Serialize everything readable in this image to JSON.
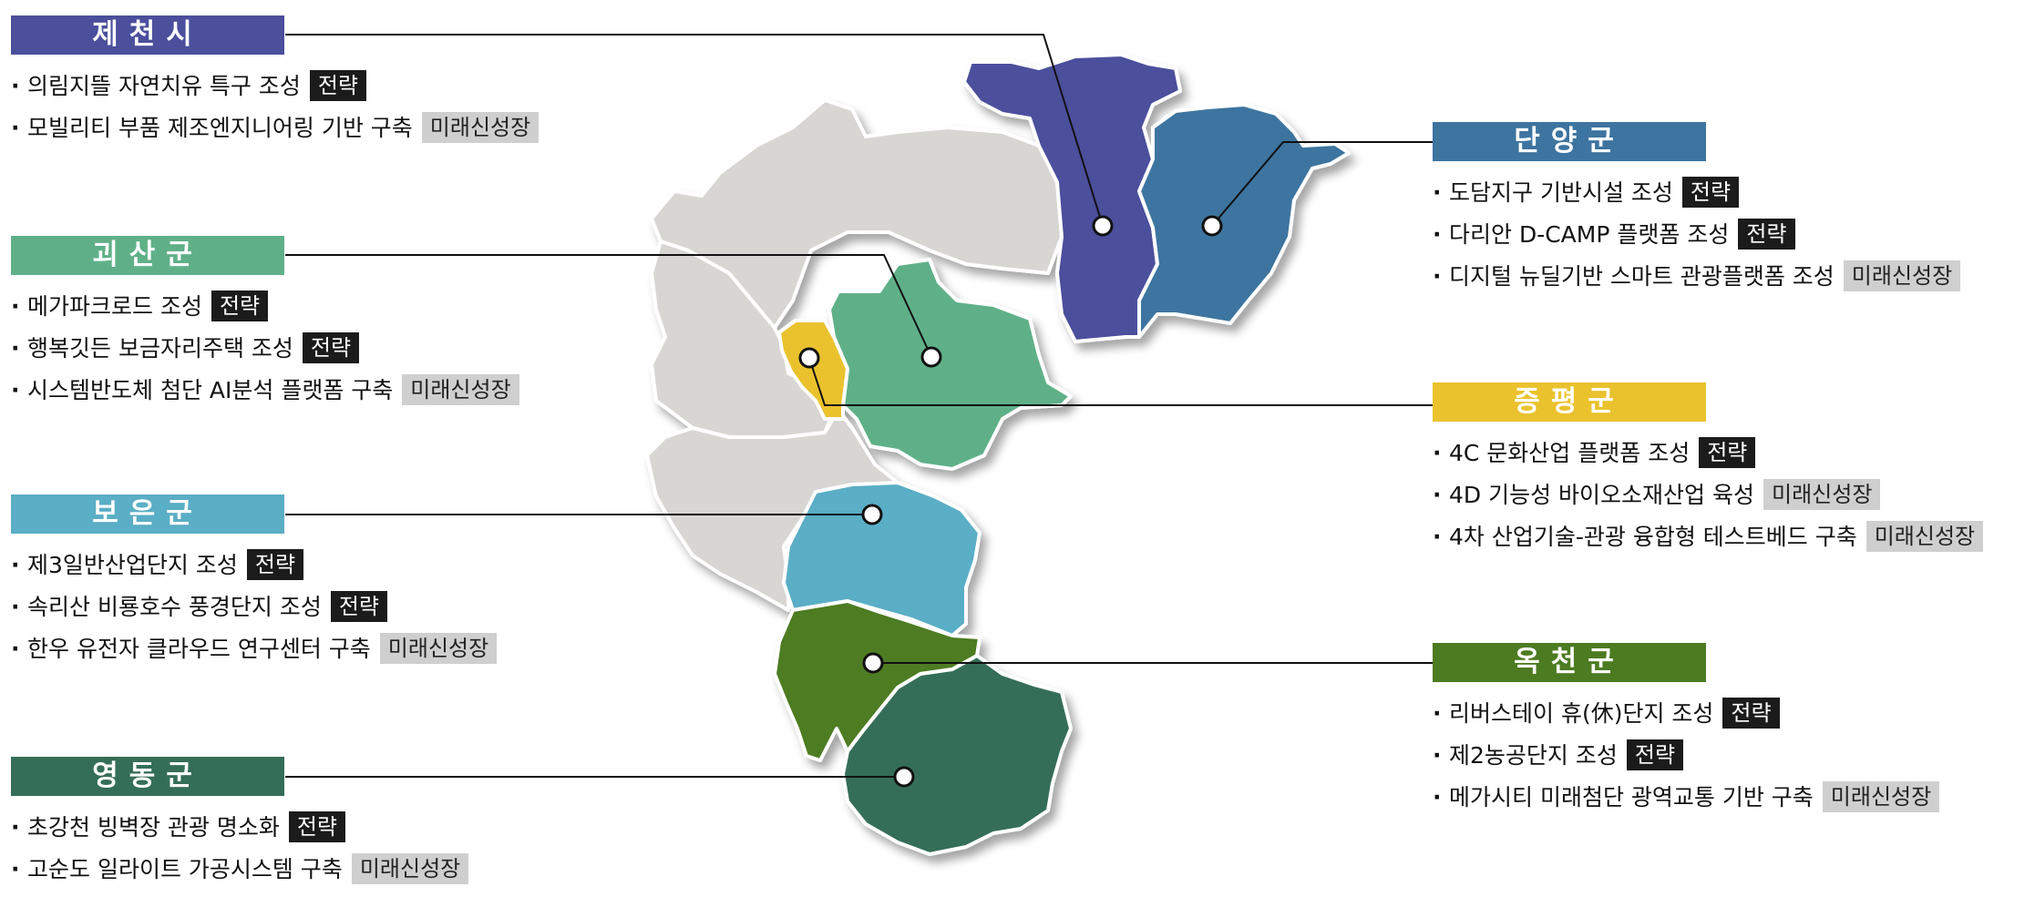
{
  "colors": {
    "jecheon": "#4b4f9c",
    "danyang": "#3d74a0",
    "goesan": "#5fb088",
    "jeungpyeong": "#eac22d",
    "boeun": "#5aaec5",
    "okcheon": "#4d7b21",
    "yeongdong": "#356e58",
    "other_region": "#d8d6d3",
    "leader_line": "#111111"
  },
  "regions": [
    {
      "id": "jecheon",
      "name": "제천시",
      "items": [
        {
          "text": "의림지뜰 자연치유 특구 조성",
          "tag": "전략",
          "tag_type": "strategy"
        },
        {
          "text": "모빌리티 부품 제조엔지니어링 기반 구축",
          "tag": "미래신성장",
          "tag_type": "future"
        }
      ]
    },
    {
      "id": "goesan",
      "name": "괴산군",
      "items": [
        {
          "text": "메가파크로드 조성",
          "tag": "전략",
          "tag_type": "strategy"
        },
        {
          "text": "행복깃든 보금자리주택 조성",
          "tag": "전략",
          "tag_type": "strategy"
        },
        {
          "text": "시스템반도체 첨단 AI분석 플랫폼 구축",
          "tag": "미래신성장",
          "tag_type": "future"
        }
      ]
    },
    {
      "id": "boeun",
      "name": "보은군",
      "items": [
        {
          "text": "제3일반산업단지 조성",
          "tag": "전략",
          "tag_type": "strategy"
        },
        {
          "text": "속리산 비룡호수 풍경단지 조성",
          "tag": "전략",
          "tag_type": "strategy"
        },
        {
          "text": "한우 유전자 클라우드 연구센터 구축",
          "tag": "미래신성장",
          "tag_type": "future"
        }
      ]
    },
    {
      "id": "yeongdong",
      "name": "영동군",
      "items": [
        {
          "text": "초강천 빙벽장 관광 명소화",
          "tag": "전략",
          "tag_type": "strategy"
        },
        {
          "text": "고순도 일라이트 가공시스템 구축",
          "tag": "미래신성장",
          "tag_type": "future"
        }
      ]
    },
    {
      "id": "danyang",
      "name": "단양군",
      "items": [
        {
          "text": "도담지구 기반시설 조성",
          "tag": "전략",
          "tag_type": "strategy"
        },
        {
          "text": "다리안 D-CAMP 플랫폼 조성",
          "tag": "전략",
          "tag_type": "strategy"
        },
        {
          "text": "디지털 뉴딜기반 스마트 관광플랫폼 조성",
          "tag": "미래신성장",
          "tag_type": "future"
        }
      ]
    },
    {
      "id": "jeungpyeong",
      "name": "증평군",
      "items": [
        {
          "text": "4C 문화산업 플랫폼 조성",
          "tag": "전략",
          "tag_type": "strategy"
        },
        {
          "text": "4D 기능성 바이오소재산업 육성",
          "tag": "미래신성장",
          "tag_type": "future"
        },
        {
          "text": "4차 산업기술-관광 융합형 테스트베드 구축",
          "tag": "미래신성장",
          "tag_type": "future"
        }
      ]
    },
    {
      "id": "okcheon",
      "name": "옥천군",
      "items": [
        {
          "text": "리버스테이 휴(休)단지 조성",
          "tag": "전략",
          "tag_type": "strategy"
        },
        {
          "text": "제2농공단지 조성",
          "tag": "전략",
          "tag_type": "strategy"
        },
        {
          "text": "메가시티 미래첨단 광역교통 기반 구축",
          "tag": "미래신성장",
          "tag_type": "future"
        }
      ]
    }
  ]
}
